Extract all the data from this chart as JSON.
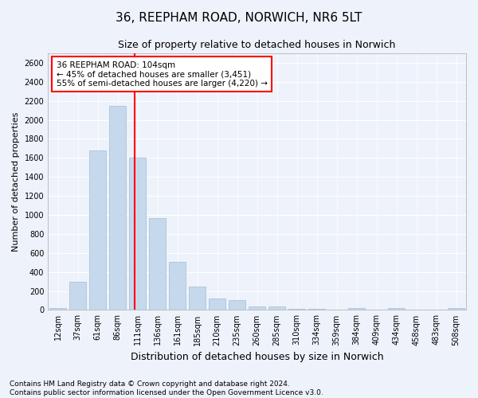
{
  "title": "36, REEPHAM ROAD, NORWICH, NR6 5LT",
  "subtitle": "Size of property relative to detached houses in Norwich",
  "xlabel": "Distribution of detached houses by size in Norwich",
  "ylabel": "Number of detached properties",
  "categories": [
    "12sqm",
    "37sqm",
    "61sqm",
    "86sqm",
    "111sqm",
    "136sqm",
    "161sqm",
    "185sqm",
    "210sqm",
    "235sqm",
    "260sqm",
    "285sqm",
    "310sqm",
    "334sqm",
    "359sqm",
    "384sqm",
    "409sqm",
    "434sqm",
    "458sqm",
    "483sqm",
    "508sqm"
  ],
  "values": [
    20,
    300,
    1680,
    2150,
    1600,
    970,
    510,
    245,
    120,
    100,
    40,
    40,
    15,
    10,
    5,
    20,
    5,
    20,
    5,
    5,
    20
  ],
  "bar_color": "#c6d9ec",
  "bar_edge_color": "#a0bcd4",
  "vline_x": 3.87,
  "vline_color": "red",
  "ylim": [
    0,
    2700
  ],
  "yticks": [
    0,
    200,
    400,
    600,
    800,
    1000,
    1200,
    1400,
    1600,
    1800,
    2000,
    2200,
    2400,
    2600
  ],
  "annotation_title": "36 REEPHAM ROAD: 104sqm",
  "annotation_line2": "← 45% of detached houses are smaller (3,451)",
  "annotation_line3": "55% of semi-detached houses are larger (4,220) →",
  "annotation_box_color": "red",
  "footer_line1": "Contains HM Land Registry data © Crown copyright and database right 2024.",
  "footer_line2": "Contains public sector information licensed under the Open Government Licence v3.0.",
  "background_color": "#eef2fb",
  "grid_color": "#ffffff",
  "title_fontsize": 11,
  "subtitle_fontsize": 9,
  "ylabel_fontsize": 8,
  "xlabel_fontsize": 9,
  "tick_fontsize": 7,
  "annot_fontsize": 7.5,
  "footer_fontsize": 6.5
}
